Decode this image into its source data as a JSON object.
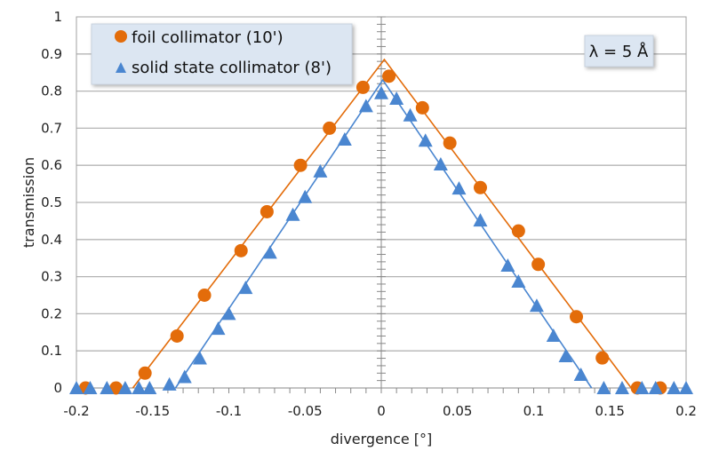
{
  "chart_data": {
    "type": "scatter",
    "title": "",
    "xlabel": "divergence [°]",
    "ylabel": "transmission",
    "xlim": [
      -0.2,
      0.2
    ],
    "ylim": [
      0,
      1
    ],
    "grid": "horizontal",
    "legend_placement": "top-left",
    "annotation": "λ = 5 Å",
    "xticks": [
      "-0.2",
      "-0.15",
      "-0.1",
      "-0.05",
      "0",
      "0.05",
      "0.1",
      "0.15",
      "0.2"
    ],
    "xtick_values": [
      -0.2,
      -0.15,
      -0.1,
      -0.05,
      0,
      0.05,
      0.1,
      0.15,
      0.2
    ],
    "yticks": [
      "0",
      "0.1",
      "0.2",
      "0.3",
      "0.4",
      "0.5",
      "0.6",
      "0.7",
      "0.8",
      "0.9",
      "1"
    ],
    "ytick_values": [
      0,
      0.1,
      0.2,
      0.3,
      0.4,
      0.5,
      0.6,
      0.7,
      0.8,
      0.9,
      1
    ],
    "series": [
      {
        "name": "foil collimator (10')",
        "marker": "circle",
        "color": "#E36C0A",
        "x": [
          -0.194,
          -0.174,
          -0.155,
          -0.134,
          -0.116,
          -0.092,
          -0.075,
          -0.053,
          -0.034,
          -0.012,
          0.005,
          0.027,
          0.045,
          0.065,
          0.09,
          0.103,
          0.128,
          0.145,
          0.168,
          0.183
        ],
        "y": [
          0,
          0,
          0.04,
          0.14,
          0.25,
          0.37,
          0.475,
          0.6,
          0.7,
          0.81,
          0.84,
          0.755,
          0.66,
          0.54,
          0.423,
          0.333,
          0.192,
          0.081,
          0,
          0
        ],
        "fit": {
          "x": [
            -0.163,
            0.002,
            0.164
          ],
          "y": [
            0,
            0.885,
            0
          ]
        }
      },
      {
        "name": "solid state collimator (8')",
        "marker": "triangle",
        "color": "#4A86D0",
        "x": [
          -0.2,
          -0.191,
          -0.18,
          -0.168,
          -0.159,
          -0.152,
          -0.139,
          -0.129,
          -0.119,
          -0.107,
          -0.1,
          -0.089,
          -0.073,
          -0.058,
          -0.05,
          -0.04,
          -0.024,
          -0.01,
          0,
          0.01,
          0.019,
          0.029,
          0.039,
          0.051,
          0.065,
          0.083,
          0.09,
          0.102,
          0.113,
          0.121,
          0.131,
          0.146,
          0.158,
          0.171,
          0.18,
          0.192,
          0.2
        ],
        "y": [
          0,
          0,
          0,
          0,
          0,
          0,
          0.01,
          0.03,
          0.08,
          0.16,
          0.2,
          0.27,
          0.365,
          0.467,
          0.515,
          0.584,
          0.67,
          0.76,
          0.795,
          0.78,
          0.735,
          0.667,
          0.603,
          0.538,
          0.452,
          0.33,
          0.287,
          0.222,
          0.141,
          0.086,
          0.036,
          0,
          0,
          0,
          0,
          0,
          0
        ],
        "fit": {
          "x": [
            -0.135,
            0.001,
            0.138
          ],
          "y": [
            0,
            0.83,
            0
          ]
        }
      }
    ]
  }
}
